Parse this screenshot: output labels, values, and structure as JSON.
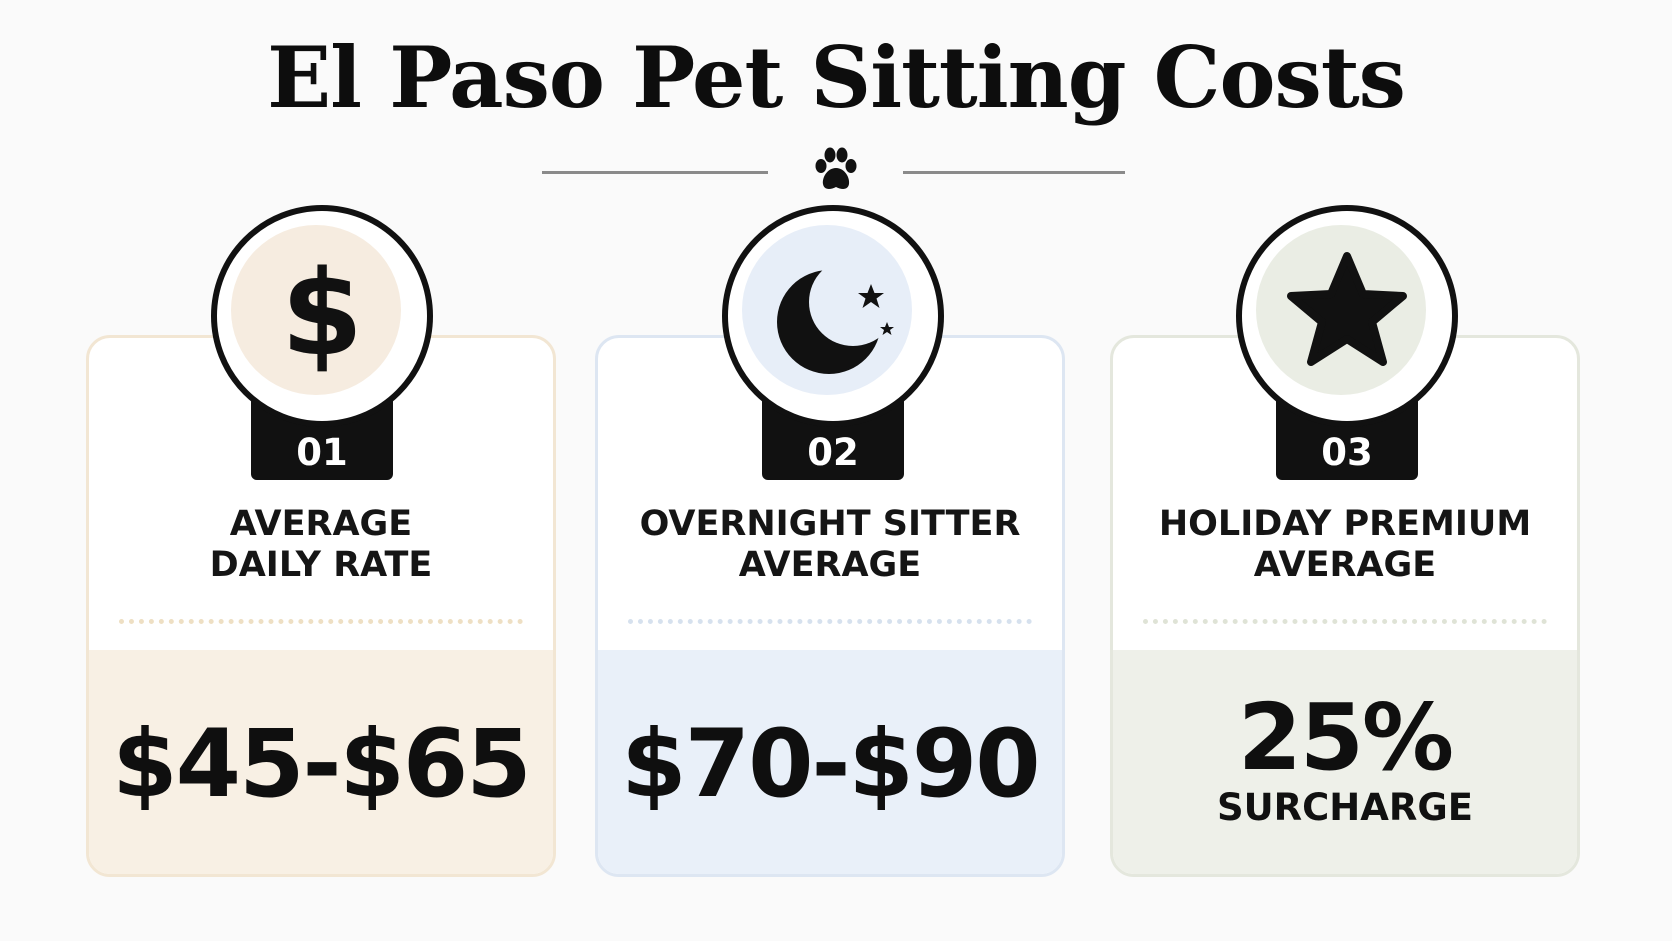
{
  "title": "El Paso Pet Sitting Costs",
  "cards": [
    {
      "number": "01",
      "icon": "dollar-icon",
      "label_line1": "AVERAGE",
      "label_line2": "DAILY RATE",
      "value": "$45-$65",
      "sub": "",
      "accent": "#f8f0e4"
    },
    {
      "number": "02",
      "icon": "moon-stars-icon",
      "label_line1": "OVERNIGHT SITTER",
      "label_line2": "AVERAGE",
      "value": "$70-$90",
      "sub": "",
      "accent": "#e9f0f9"
    },
    {
      "number": "03",
      "icon": "star-icon",
      "label_line1": "HOLIDAY PREMIUM",
      "label_line2": "AVERAGE",
      "value": "25%",
      "sub": "SURCHARGE",
      "accent": "#eef0e9"
    }
  ]
}
